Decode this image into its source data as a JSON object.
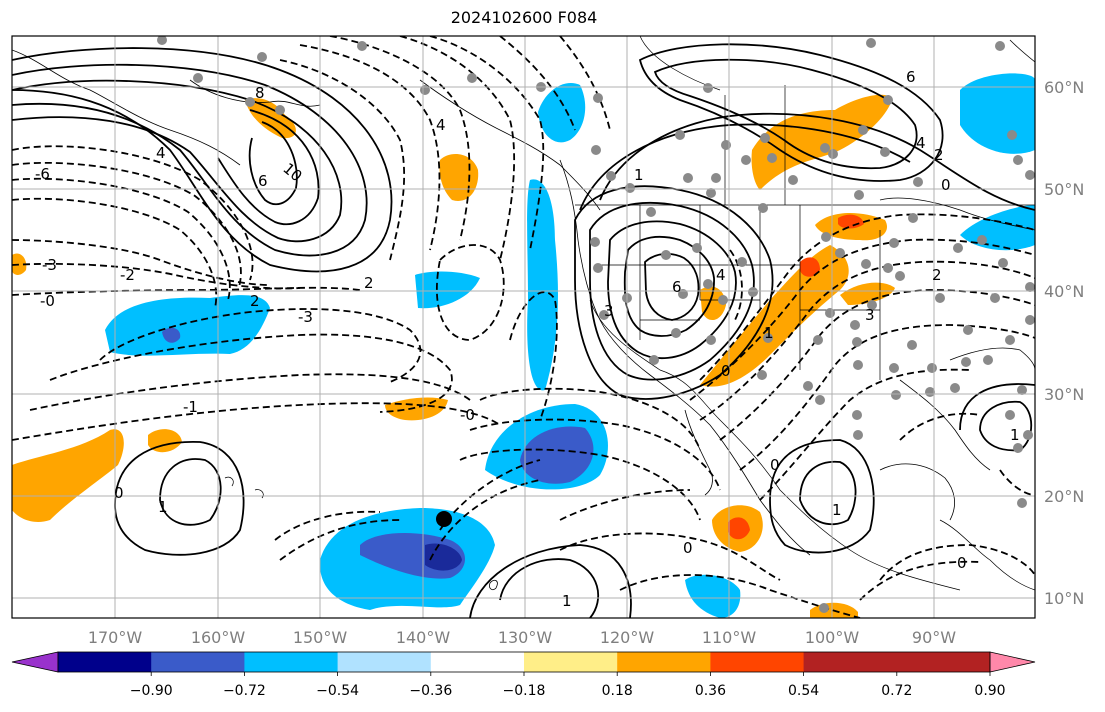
{
  "title": "2024102600 F084",
  "lon_ticks": [
    "170°W",
    "160°W",
    "150°W",
    "140°W",
    "130°W",
    "120°W",
    "110°W",
    "100°W",
    "90°W"
  ],
  "lat_ticks": [
    "60°N",
    "50°N",
    "40°N",
    "30°N",
    "20°N",
    "10°N"
  ],
  "colorbar": {
    "labels": [
      "−0.90",
      "−0.72",
      "−0.54",
      "−0.36",
      "−0.18",
      "0.18",
      "0.36",
      "0.54",
      "0.72",
      "0.90"
    ],
    "colors": [
      "#9932cc",
      "#00008b",
      "#3a5bc9",
      "#00bfff",
      "#b0e2ff",
      "#ffffff",
      "#ffee88",
      "#ffa500",
      "#ff4500",
      "#b22222",
      "#ff88aa"
    ]
  },
  "fill_colors": {
    "light_blue": "#b0e2ff",
    "blue": "#00bfff",
    "royal": "#3a5bc9",
    "orange": "#ffa500",
    "red": "#ff4500",
    "yellow": "#ffee88"
  },
  "contour_labels": [
    {
      "text": "8"
    },
    {
      "text": "10"
    },
    {
      "text": "6"
    },
    {
      "text": "4"
    },
    {
      "text": "4"
    },
    {
      "text": "-6"
    },
    {
      "text": "-3"
    },
    {
      "text": "-2"
    },
    {
      "text": "-0"
    },
    {
      "text": "2"
    },
    {
      "text": "-3"
    },
    {
      "text": "2"
    },
    {
      "text": "-1"
    },
    {
      "text": "0"
    },
    {
      "text": "1"
    },
    {
      "text": "-0"
    },
    {
      "text": "1"
    },
    {
      "text": "6"
    },
    {
      "text": "4"
    },
    {
      "text": "2"
    },
    {
      "text": "0"
    },
    {
      "text": "6"
    },
    {
      "text": "4"
    },
    {
      "text": "3"
    },
    {
      "text": "2"
    },
    {
      "text": "3"
    },
    {
      "text": "0"
    },
    {
      "text": "1"
    },
    {
      "text": "0"
    },
    {
      "text": "0"
    },
    {
      "text": "1"
    },
    {
      "text": "0"
    },
    {
      "text": "1"
    },
    {
      "text": "1"
    }
  ]
}
